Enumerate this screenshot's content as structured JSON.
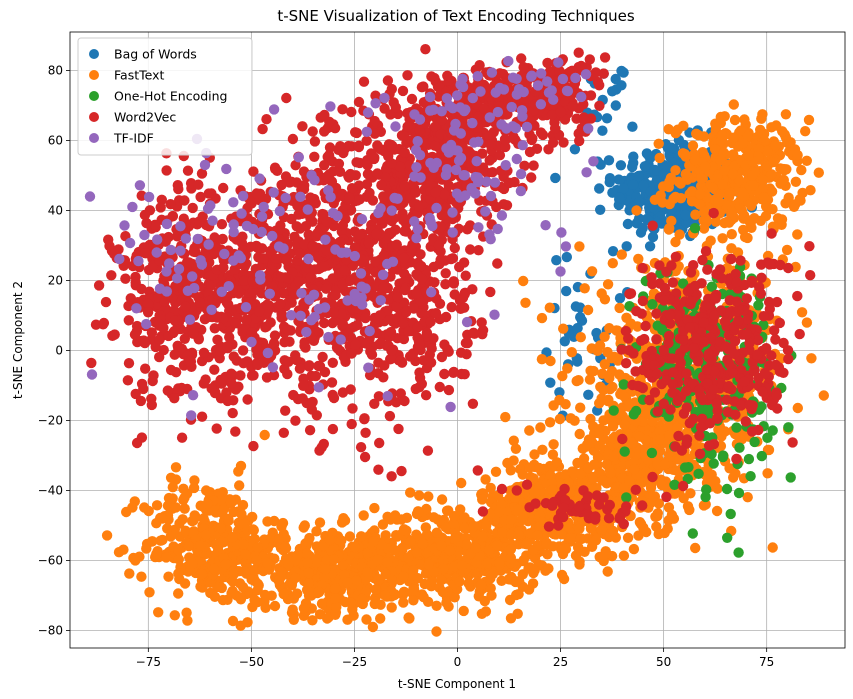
{
  "chart_data": {
    "type": "scatter",
    "title": "t-SNE Visualization of Text Encoding Techniques",
    "xlabel": "t-SNE Component 1",
    "ylabel": "t-SNE Component 2",
    "xlim": [
      -94,
      94
    ],
    "ylim": [
      -85,
      91
    ],
    "xticks": [
      -75,
      -50,
      -25,
      0,
      25,
      50,
      75
    ],
    "yticks": [
      -80,
      -60,
      -40,
      -20,
      0,
      20,
      40,
      60,
      80
    ],
    "grid": true,
    "legend_position": "top-left",
    "series": [
      {
        "name": "Bag of Words",
        "color": "#1f77b4",
        "clusters": [
          {
            "cx": 52,
            "cy": 46,
            "sx": 7,
            "sy": 7,
            "n": 320
          },
          {
            "cx": 30,
            "cy": 5,
            "sx": 4,
            "sy": 12,
            "n": 35
          },
          {
            "cx": 35,
            "cy": 70,
            "sx": 4,
            "sy": 7,
            "n": 20
          }
        ]
      },
      {
        "name": "FastText",
        "color": "#ff7f0e",
        "clusters": [
          {
            "cx": 68,
            "cy": 50,
            "sx": 8,
            "sy": 8,
            "n": 380
          },
          {
            "cx": -60,
            "cy": -55,
            "sx": 8,
            "sy": 9,
            "n": 300
          },
          {
            "cx": -30,
            "cy": -63,
            "sx": 12,
            "sy": 6,
            "n": 450
          },
          {
            "cx": 0,
            "cy": -58,
            "sx": 10,
            "sy": 7,
            "n": 420
          },
          {
            "cx": 25,
            "cy": -45,
            "sx": 10,
            "sy": 7,
            "n": 420
          },
          {
            "cx": 45,
            "cy": -30,
            "sx": 10,
            "sy": 9,
            "n": 380
          },
          {
            "cx": 55,
            "cy": -5,
            "sx": 13,
            "sy": 15,
            "n": 520
          }
        ]
      },
      {
        "name": "One-Hot Encoding",
        "color": "#2ca02c",
        "clusters": [
          {
            "cx": 60,
            "cy": -5,
            "sx": 8,
            "sy": 15,
            "n": 260
          }
        ]
      },
      {
        "name": "Word2Vec",
        "color": "#d62728",
        "clusters": [
          {
            "cx": -65,
            "cy": 15,
            "sx": 9,
            "sy": 15,
            "n": 420
          },
          {
            "cx": -40,
            "cy": 20,
            "sx": 11,
            "sy": 17,
            "n": 520
          },
          {
            "cx": -15,
            "cy": 20,
            "sx": 10,
            "sy": 20,
            "n": 520
          },
          {
            "cx": -8,
            "cy": 55,
            "sx": 11,
            "sy": 9,
            "n": 360
          },
          {
            "cx": 8,
            "cy": 70,
            "sx": 10,
            "sy": 6,
            "n": 280
          },
          {
            "cx": 25,
            "cy": 75,
            "sx": 5,
            "sy": 5,
            "n": 110
          },
          {
            "cx": 62,
            "cy": 0,
            "sx": 10,
            "sy": 14,
            "n": 380
          },
          {
            "cx": 30,
            "cy": -45,
            "sx": 8,
            "sy": 3,
            "n": 50
          }
        ]
      },
      {
        "name": "TF-IDF",
        "color": "#9467bd",
        "clusters": [
          {
            "cx": -45,
            "cy": 25,
            "sx": 22,
            "sy": 17,
            "n": 130
          },
          {
            "cx": 0,
            "cy": 55,
            "sx": 10,
            "sy": 12,
            "n": 90
          },
          {
            "cx": 15,
            "cy": 75,
            "sx": 8,
            "sy": 4,
            "n": 40
          }
        ]
      }
    ]
  }
}
